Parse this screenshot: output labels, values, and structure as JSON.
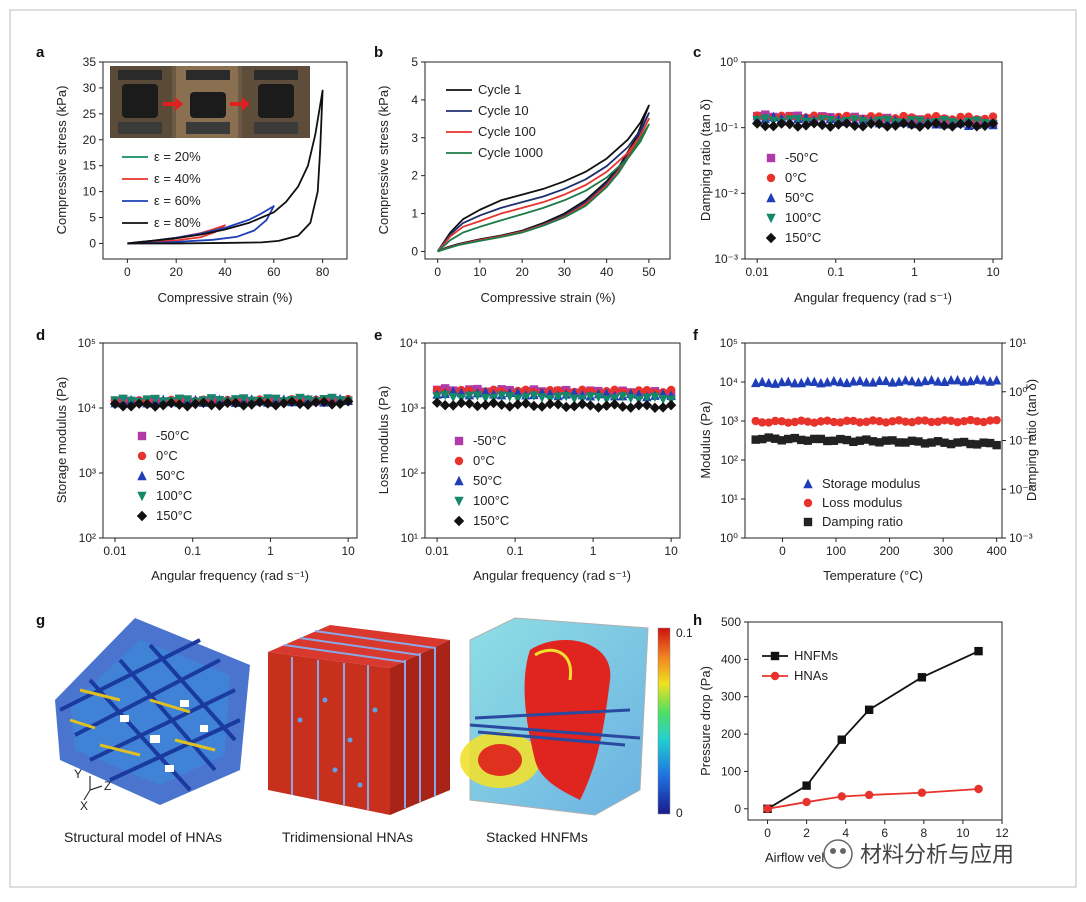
{
  "panel_letters": [
    "a",
    "b",
    "c",
    "d",
    "e",
    "f",
    "g",
    "h"
  ],
  "colors": {
    "black": "#111111",
    "red": "#e8322c",
    "blue": "#1f3fb8",
    "green": "#14896a",
    "purple": "#b03aa8",
    "navy": "#1e2f6e",
    "darkgreen": "#1f7a4a",
    "sq_black": "#222222"
  },
  "chart_data": [
    {
      "id": "a",
      "type": "line",
      "xlabel": "Compressive strain (%)",
      "ylabel": "Compressive stress (kPa)",
      "xlim": [
        -10,
        90
      ],
      "ylim": [
        -3,
        35
      ],
      "xticks": [
        "0",
        "20",
        "40",
        "60",
        "80"
      ],
      "yticks": [
        "0",
        "5",
        "10",
        "15",
        "20",
        "25",
        "30",
        "35"
      ],
      "series": [
        {
          "name": "ε = 20%",
          "color": "green",
          "x": [
            0,
            5,
            10,
            15,
            20,
            17,
            12,
            8,
            4,
            0
          ],
          "y": [
            0,
            0.3,
            0.5,
            0.8,
            1.1,
            0.5,
            0.3,
            0.2,
            0.1,
            0
          ]
        },
        {
          "name": "ε = 40%",
          "color": "red",
          "x": [
            0,
            10,
            20,
            30,
            35,
            40,
            36,
            30,
            20,
            10,
            0
          ],
          "y": [
            0,
            0.5,
            1.1,
            2,
            2.7,
            3.5,
            2.2,
            1.2,
            0.6,
            0.3,
            0
          ]
        },
        {
          "name": "ε = 60%",
          "color": "blue",
          "x": [
            0,
            10,
            20,
            30,
            40,
            50,
            55,
            60,
            57,
            52,
            45,
            35,
            20,
            10,
            0
          ],
          "y": [
            0,
            0.5,
            1.1,
            1.9,
            3,
            4.6,
            5.8,
            7.2,
            4.5,
            2.5,
            1.3,
            0.7,
            0.3,
            0.1,
            0
          ]
        },
        {
          "name": "ε = 80%",
          "color": "black",
          "x": [
            0,
            10,
            20,
            30,
            40,
            50,
            60,
            65,
            70,
            74,
            77,
            80,
            79,
            78,
            75,
            70,
            62,
            55,
            40,
            20,
            0
          ],
          "y": [
            0,
            0.5,
            1,
            1.7,
            2.7,
            4,
            6,
            8,
            11,
            15,
            21,
            29.5,
            18,
            10,
            4,
            1.5,
            0.5,
            0.2,
            0.1,
            0,
            0
          ]
        }
      ]
    },
    {
      "id": "b",
      "type": "line",
      "xlabel": "Compressive strain (%)",
      "ylabel": "Compressive stress (kPa)",
      "xlim": [
        -3,
        55
      ],
      "ylim": [
        -0.2,
        5
      ],
      "xticks": [
        "0",
        "10",
        "20",
        "30",
        "40",
        "50"
      ],
      "yticks": [
        "0",
        "1",
        "2",
        "3",
        "4",
        "5"
      ],
      "series": [
        {
          "name": "Cycle 1",
          "color": "black",
          "x": [
            0,
            3,
            6,
            10,
            15,
            20,
            25,
            30,
            35,
            40,
            45,
            48,
            50,
            47,
            43,
            40,
            35,
            30,
            25,
            20,
            15,
            10,
            5,
            2,
            0
          ],
          "y": [
            0,
            0.5,
            0.85,
            1.1,
            1.35,
            1.5,
            1.65,
            1.85,
            2.1,
            2.45,
            2.95,
            3.4,
            3.85,
            3.0,
            2.25,
            1.85,
            1.35,
            1.0,
            0.75,
            0.55,
            0.42,
            0.32,
            0.2,
            0.1,
            0
          ]
        },
        {
          "name": "Cycle 10",
          "color": "navy",
          "x": [
            0,
            3,
            6,
            10,
            15,
            20,
            25,
            30,
            35,
            40,
            45,
            48,
            50,
            47,
            43,
            40,
            35,
            30,
            25,
            20,
            15,
            10,
            5,
            2,
            0
          ],
          "y": [
            0,
            0.45,
            0.75,
            0.95,
            1.15,
            1.3,
            1.45,
            1.65,
            1.9,
            2.25,
            2.75,
            3.2,
            3.65,
            2.9,
            2.2,
            1.8,
            1.3,
            0.95,
            0.72,
            0.53,
            0.4,
            0.3,
            0.18,
            0.08,
            0
          ]
        },
        {
          "name": "Cycle 100",
          "color": "red",
          "x": [
            0,
            3,
            6,
            10,
            15,
            20,
            25,
            30,
            35,
            40,
            45,
            48,
            50,
            47,
            43,
            40,
            35,
            30,
            25,
            20,
            15,
            10,
            5,
            2,
            0
          ],
          "y": [
            0,
            0.4,
            0.65,
            0.8,
            1.0,
            1.15,
            1.3,
            1.5,
            1.75,
            2.1,
            2.6,
            3.05,
            3.5,
            2.85,
            2.15,
            1.75,
            1.25,
            0.92,
            0.7,
            0.52,
            0.4,
            0.3,
            0.18,
            0.08,
            0
          ]
        },
        {
          "name": "Cycle 1000",
          "color": "darkgreen",
          "x": [
            0,
            3,
            6,
            10,
            15,
            20,
            25,
            30,
            35,
            40,
            45,
            48,
            50,
            47,
            43,
            40,
            35,
            30,
            25,
            20,
            15,
            10,
            5,
            2,
            0
          ],
          "y": [
            0,
            0.3,
            0.5,
            0.65,
            0.82,
            0.98,
            1.15,
            1.35,
            1.6,
            1.95,
            2.45,
            2.9,
            3.35,
            2.8,
            2.1,
            1.7,
            1.2,
            0.9,
            0.68,
            0.5,
            0.38,
            0.28,
            0.17,
            0.07,
            0
          ]
        }
      ]
    },
    {
      "id": "c",
      "type": "scatter",
      "log_x": true,
      "log_y": true,
      "xlabel": "Angular frequency (rad s⁻¹)",
      "ylabel": "Damping ratio (tan δ)",
      "xlim": [
        0.007,
        13
      ],
      "ylim": [
        0.001,
        1
      ],
      "xticks": [
        "0.01",
        "0.1",
        "1",
        "10"
      ],
      "yticks": [
        "10⁻³",
        "10⁻²",
        "10⁻¹",
        "10⁰"
      ],
      "n_points": 30,
      "series": [
        {
          "name": "-50°C",
          "marker": "square",
          "color": "purple",
          "values_start": 0.15,
          "values_end": 0.12
        },
        {
          "name": "0°C",
          "marker": "circle",
          "color": "red",
          "values_start": 0.145,
          "values_end": 0.14
        },
        {
          "name": "50°C",
          "marker": "triangle-up",
          "color": "blue",
          "values_start": 0.14,
          "values_end": 0.11
        },
        {
          "name": "100°C",
          "marker": "triangle-down",
          "color": "green",
          "values_start": 0.13,
          "values_end": 0.12
        },
        {
          "name": "150°C",
          "marker": "diamond",
          "color": "black",
          "values_start": 0.11,
          "values_end": 0.11
        }
      ]
    },
    {
      "id": "d",
      "type": "scatter",
      "log_x": true,
      "log_y": true,
      "xlabel": "Angular frequency (rad s⁻¹)",
      "ylabel": "Storage modulus (Pa)",
      "xlim": [
        0.007,
        13
      ],
      "ylim": [
        100,
        100000
      ],
      "xticks": [
        "0.01",
        "0.1",
        "1",
        "10"
      ],
      "yticks": [
        "10²",
        "10³",
        "10⁴",
        "10⁵"
      ],
      "n_points": 30,
      "series": [
        {
          "name": "-50°C",
          "marker": "square",
          "color": "purple",
          "values_start": 13000,
          "values_end": 13500
        },
        {
          "name": "0°C",
          "marker": "circle",
          "color": "red",
          "values_start": 12500,
          "values_end": 13000
        },
        {
          "name": "50°C",
          "marker": "triangle-up",
          "color": "blue",
          "values_start": 12500,
          "values_end": 13000
        },
        {
          "name": "100°C",
          "marker": "triangle-down",
          "color": "green",
          "values_start": 13000,
          "values_end": 13500
        },
        {
          "name": "150°C",
          "marker": "diamond",
          "color": "black",
          "values_start": 11000,
          "values_end": 12000
        }
      ]
    },
    {
      "id": "e",
      "type": "scatter",
      "log_x": true,
      "log_y": true,
      "xlabel": "Angular frequency (rad s⁻¹)",
      "ylabel": "Loss modulus (Pa)",
      "xlim": [
        0.007,
        13
      ],
      "ylim": [
        10,
        10000
      ],
      "xticks": [
        "0.01",
        "0.1",
        "1",
        "10"
      ],
      "yticks": [
        "10¹",
        "10²",
        "10³",
        "10⁴"
      ],
      "n_points": 30,
      "series": [
        {
          "name": "-50°C",
          "marker": "square",
          "color": "purple",
          "values_start": 1900,
          "values_end": 1700
        },
        {
          "name": "0°C",
          "marker": "circle",
          "color": "red",
          "values_start": 1800,
          "values_end": 1800
        },
        {
          "name": "50°C",
          "marker": "triangle-up",
          "color": "blue",
          "values_start": 1700,
          "values_end": 1550
        },
        {
          "name": "100°C",
          "marker": "triangle-down",
          "color": "green",
          "values_start": 1500,
          "values_end": 1400
        },
        {
          "name": "150°C",
          "marker": "diamond",
          "color": "black",
          "values_start": 1150,
          "values_end": 1050
        }
      ]
    },
    {
      "id": "f",
      "type": "scatter",
      "log_y": true,
      "xlabel": "Temperature (°C)",
      "ylabel": "Modulus (Pa)",
      "y2label": "Damping ratio (tan δ)",
      "xlim": [
        -70,
        410
      ],
      "ylim": [
        1,
        100000
      ],
      "y2lim": [
        0.001,
        10
      ],
      "xticks": [
        "0",
        "100",
        "200",
        "300",
        "400"
      ],
      "x_tick_values": [
        0,
        100,
        200,
        300,
        400
      ],
      "yticks": [
        "10⁰",
        "10¹",
        "10²",
        "10³",
        "10⁴",
        "10⁵"
      ],
      "y2ticks": [
        "10⁻³",
        "10⁻²",
        "10⁻¹",
        "10⁰",
        "10¹"
      ],
      "x_start": -50,
      "x_end": 400,
      "n_points": 38,
      "series": [
        {
          "name": "Storage modulus",
          "marker": "triangle-up",
          "color": "blue",
          "axis": "left",
          "values_start": 9500,
          "values_end": 11000
        },
        {
          "name": "Loss modulus",
          "marker": "circle",
          "color": "red",
          "axis": "left",
          "values_start": 950,
          "values_end": 1000
        },
        {
          "name": "Damping ratio",
          "marker": "square",
          "color": "sq_black",
          "axis": "right",
          "values_start": 0.11,
          "values_end": 0.085
        }
      ]
    },
    {
      "id": "h",
      "type": "line",
      "xlabel": "Airflow velocity",
      "ylabel": "Pressure drop (Pa)",
      "xlim": [
        -1,
        12
      ],
      "ylim": [
        -30,
        500
      ],
      "xticks": [
        "0",
        "2",
        "4",
        "6",
        "8",
        "10",
        "12"
      ],
      "yticks": [
        "0",
        "100",
        "200",
        "300",
        "400",
        "500"
      ],
      "series": [
        {
          "name": "HNFMs",
          "marker": "square",
          "color": "black",
          "x": [
            0,
            2,
            3.8,
            5.2,
            7.9,
            10.8
          ],
          "y": [
            0,
            62,
            185,
            265,
            352,
            422
          ]
        },
        {
          "name": "HNAs",
          "marker": "circle",
          "color": "red",
          "x": [
            0,
            2,
            3.8,
            5.2,
            7.9,
            10.8
          ],
          "y": [
            0,
            18,
            33,
            37,
            43,
            53
          ]
        }
      ]
    }
  ],
  "panel_g": {
    "captions": [
      "Structural model of HNAs",
      "Tridimensional HNAs",
      "Stacked HNFMs"
    ],
    "axes_labels": [
      "Y",
      "Z",
      "X"
    ],
    "colorbar": {
      "max_label": "0.1",
      "min_label": "0"
    }
  },
  "watermark": "材料分析与应用"
}
